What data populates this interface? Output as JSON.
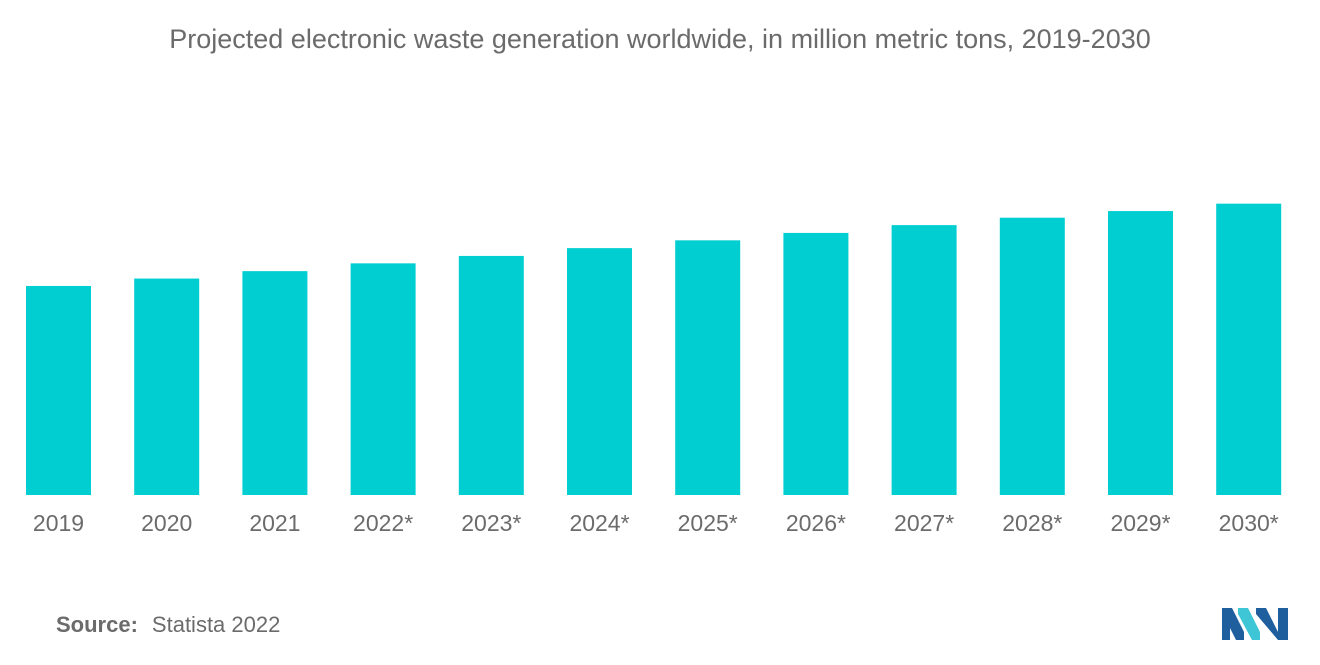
{
  "title": "Projected electronic waste generation worldwide, in million metric tons, 2019-2030",
  "source": {
    "label": "Source:",
    "text": "Statista 2022"
  },
  "colors": {
    "bar": "#00ced1",
    "text": "#6b6b6b",
    "logo_dark": "#1f5f9e",
    "logo_light": "#3fc6d6"
  },
  "logo": {
    "icon": "mordor-intelligence-logo"
  },
  "chart_data": {
    "type": "bar",
    "title": "Projected electronic waste generation worldwide, in million metric tons, 2019-2030",
    "categories": [
      "2019",
      "2020",
      "2021",
      "2022*",
      "2023*",
      "2024*",
      "2025*",
      "2026*",
      "2027*",
      "2028*",
      "2029*",
      "2030*"
    ],
    "values": [
      53.6,
      55.5,
      57.4,
      59.4,
      61.3,
      63.3,
      65.3,
      67.2,
      69.2,
      71.1,
      72.8,
      74.7
    ],
    "xlabel": "",
    "ylabel": "",
    "ylim": [
      0,
      80
    ],
    "grid": false,
    "legend": "none"
  }
}
